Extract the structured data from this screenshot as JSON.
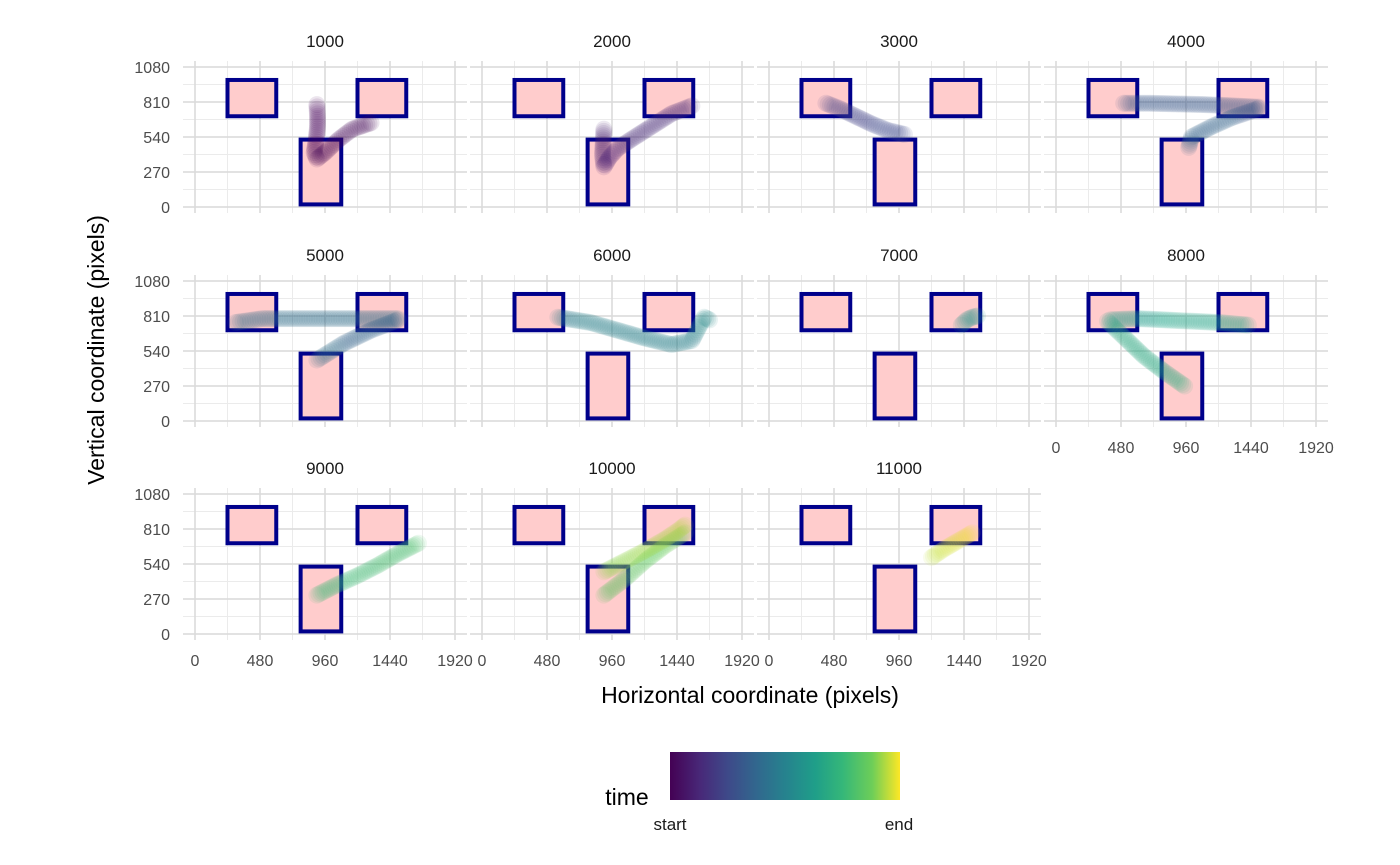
{
  "chart_data": {
    "type": "scatter",
    "xlabel": "Horizontal coordinate (pixels)",
    "ylabel": "Vertical coordinate (pixels)",
    "xlim": [
      0,
      1920
    ],
    "ylim": [
      0,
      1080
    ],
    "x_ticks": [
      "0",
      "480",
      "960",
      "1440",
      "1920"
    ],
    "y_ticks": [
      "0",
      "270",
      "540",
      "810",
      "1080"
    ],
    "grid": true,
    "colors": {
      "box_fill": "#ffcccc",
      "box_stroke": "#00008b",
      "grid": "#d9d9d9",
      "grid_minor": "#ebebeb",
      "palette": [
        "#440154",
        "#3b528b",
        "#21908c",
        "#5dc963",
        "#fde725"
      ]
    },
    "aois": [
      {
        "x0": 240,
        "x1": 600,
        "y0": 700,
        "y1": 980
      },
      {
        "x0": 1200,
        "x1": 1560,
        "y0": 700,
        "y1": 980
      },
      {
        "x0": 780,
        "x1": 1080,
        "y0": 20,
        "y1": 520
      }
    ],
    "legend": {
      "title": "time",
      "start_label": "start",
      "end_label": "end",
      "position": "bottom"
    },
    "panels": [
      {
        "label": "1000",
        "segments": [
          {
            "points": [
              [
                900,
                790
              ],
              [
                905,
                700
              ],
              [
                905,
                620
              ],
              [
                895,
                520
              ],
              [
                880,
                420
              ],
              [
                900,
                370
              ],
              [
                960,
                420
              ],
              [
                1060,
                520
              ],
              [
                1160,
                600
              ],
              [
                1300,
                650
              ]
            ],
            "t": [
              0.0,
              0.03
            ]
          }
        ]
      },
      {
        "label": "2000",
        "segments": [
          {
            "points": [
              [
                900,
                600
              ],
              [
                895,
                500
              ],
              [
                890,
                400
              ],
              [
                900,
                310
              ],
              [
                940,
                380
              ],
              [
                1000,
                450
              ],
              [
                1100,
                520
              ],
              [
                1250,
                620
              ],
              [
                1400,
                720
              ],
              [
                1550,
                780
              ]
            ],
            "t": [
              0.09,
              0.14
            ]
          }
        ]
      },
      {
        "label": "3000",
        "segments": [
          {
            "points": [
              [
                420,
                800
              ],
              [
                520,
                760
              ],
              [
                640,
                700
              ],
              [
                760,
                640
              ],
              [
                880,
                590
              ],
              [
                1000,
                560
              ]
            ],
            "t": [
              0.22,
              0.24
            ]
          }
        ]
      },
      {
        "label": "4000",
        "segments": [
          {
            "points": [
              [
                500,
                800
              ],
              [
                700,
                800
              ],
              [
                900,
                795
              ],
              [
                1100,
                790
              ],
              [
                1300,
                780
              ],
              [
                1500,
                770
              ]
            ],
            "t": [
              0.3,
              0.32
            ]
          },
          {
            "points": [
              [
                1500,
                760
              ],
              [
                1300,
                690
              ],
              [
                1150,
                620
              ],
              [
                1000,
                540
              ],
              [
                980,
                460
              ]
            ],
            "t": [
              0.33,
              0.35
            ]
          }
        ]
      },
      {
        "label": "5000",
        "segments": [
          {
            "points": [
              [
                300,
                760
              ],
              [
                500,
                790
              ],
              [
                700,
                790
              ],
              [
                900,
                790
              ],
              [
                1100,
                790
              ],
              [
                1300,
                790
              ],
              [
                1500,
                790
              ]
            ],
            "t": [
              0.38,
              0.42
            ]
          },
          {
            "points": [
              [
                1500,
                780
              ],
              [
                1300,
                700
              ],
              [
                1100,
                600
              ],
              [
                900,
                470
              ]
            ],
            "t": [
              0.36,
              0.38
            ]
          }
        ]
      },
      {
        "label": "6000",
        "segments": [
          {
            "points": [
              [
                560,
                800
              ],
              [
                800,
                760
              ],
              [
                1000,
                700
              ],
              [
                1200,
                640
              ],
              [
                1400,
                590
              ],
              [
                1550,
                620
              ],
              [
                1600,
                720
              ],
              [
                1640,
                800
              ],
              [
                1680,
                780
              ]
            ],
            "t": [
              0.46,
              0.52
            ]
          }
        ]
      },
      {
        "label": "7000",
        "segments": [
          {
            "points": [
              [
                1420,
                740
              ],
              [
                1460,
                780
              ],
              [
                1500,
                800
              ],
              [
                1540,
                810
              ]
            ],
            "t": [
              0.58,
              0.6
            ]
          }
        ]
      },
      {
        "label": "8000",
        "segments": [
          {
            "points": [
              [
                400,
                780
              ],
              [
                600,
                790
              ],
              [
                800,
                780
              ],
              [
                1000,
                770
              ],
              [
                1200,
                760
              ],
              [
                1420,
                740
              ]
            ],
            "t": [
              0.64,
              0.66
            ]
          },
          {
            "points": [
              [
                380,
                770
              ],
              [
                500,
                650
              ],
              [
                650,
                500
              ],
              [
                800,
                380
              ],
              [
                950,
                270
              ]
            ],
            "t": [
              0.66,
              0.7
            ]
          }
        ]
      },
      {
        "label": "9000",
        "segments": [
          {
            "points": [
              [
                900,
                300
              ],
              [
                1050,
                380
              ],
              [
                1200,
                450
              ],
              [
                1350,
                530
              ],
              [
                1500,
                620
              ],
              [
                1650,
                700
              ]
            ],
            "t": [
              0.76,
              0.8
            ]
          }
        ]
      },
      {
        "label": "10000",
        "segments": [
          {
            "points": [
              [
                900,
                300
              ],
              [
                1050,
                420
              ],
              [
                1200,
                560
              ],
              [
                1350,
                680
              ],
              [
                1500,
                780
              ]
            ],
            "t": [
              0.84,
              0.87
            ]
          },
          {
            "points": [
              [
                900,
                480
              ],
              [
                1050,
                560
              ],
              [
                1200,
                640
              ],
              [
                1350,
                730
              ],
              [
                1450,
                800
              ],
              [
                1500,
                840
              ]
            ],
            "t": [
              0.9,
              0.94
            ]
          }
        ]
      },
      {
        "label": "11000",
        "segments": [
          {
            "points": [
              [
                1200,
                590
              ],
              [
                1300,
                660
              ],
              [
                1400,
                720
              ],
              [
                1500,
                780
              ]
            ],
            "t": [
              0.95,
              0.99
            ]
          }
        ]
      }
    ]
  }
}
